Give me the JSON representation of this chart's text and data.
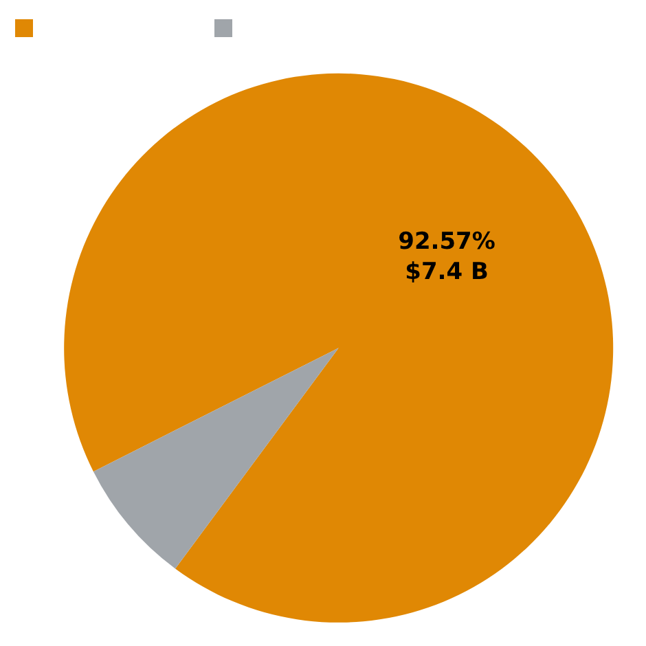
{
  "chart_data": {
    "type": "pie",
    "categories": [
      null,
      null
    ],
    "values": [
      92.57,
      7.43
    ],
    "colors": [
      "#e08804",
      "#a0a5aa"
    ],
    "value_labels": [
      "92.57%\n$7.4 B",
      null
    ]
  }
}
